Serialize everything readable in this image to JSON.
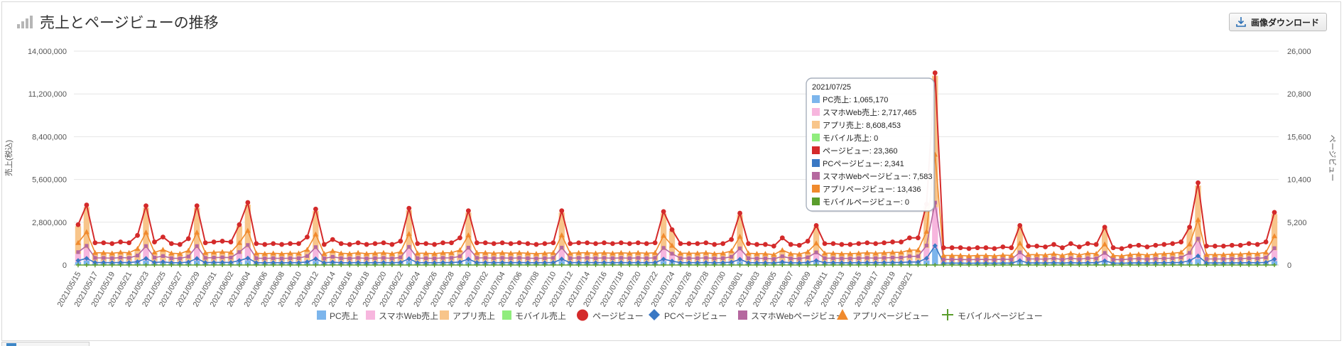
{
  "header": {
    "title": "売上とページビューの推移",
    "download_label": "画像ダウンロード"
  },
  "chart_data": {
    "type": "combo-bar-line",
    "title": "売上とページビューの推移",
    "y_left_label": "売上(税込)",
    "y_right_label": "ページビュー",
    "y_left_range": [
      0,
      14000000
    ],
    "y_right_range": [
      0,
      26000
    ],
    "y_left_ticks": [
      "0",
      "2,800,000",
      "5,600,000",
      "8,400,000",
      "11,200,000",
      "14,000,000"
    ],
    "y_right_ticks": [
      "0",
      "5,200",
      "10,400",
      "15,600",
      "20,800",
      "26,000"
    ],
    "x_tick_labels": [
      "2021/05/15",
      "2021/05/17",
      "2021/05/19",
      "2021/05/21",
      "2021/05/23",
      "2021/05/25",
      "2021/05/27",
      "2021/05/29",
      "2021/05/31",
      "2021/06/02",
      "2021/06/04",
      "2021/06/06",
      "2021/06/08",
      "2021/06/10",
      "2021/06/12",
      "2021/06/14",
      "2021/06/16",
      "2021/06/18",
      "2021/06/20",
      "2021/06/22",
      "2021/06/24",
      "2021/06/26",
      "2021/06/28",
      "2021/06/30",
      "2021/07/02",
      "2021/07/04",
      "2021/07/06",
      "2021/07/08",
      "2021/07/10",
      "2021/07/12",
      "2021/07/14",
      "2021/07/16",
      "2021/07/18",
      "2021/07/20",
      "2021/07/22",
      "2021/07/24",
      "2021/07/26",
      "2021/07/28",
      "2021/07/30",
      "2021/08/01",
      "2021/08/03",
      "2021/08/05",
      "2021/08/07",
      "2021/08/09",
      "2021/08/11",
      "2021/08/13",
      "2021/08/15",
      "2021/08/17",
      "2021/08/19",
      "2021/08/21"
    ],
    "series_colors": {
      "pc_sales": "#7cb5ec",
      "sp_web_sales": "#f7b6de",
      "app_sales": "#f8c58a",
      "mobile_sales": "#90ed7d",
      "page_views": "#d42a2a",
      "pc_pv": "#3a78c4",
      "sp_web_pv": "#b5689f",
      "app_pv": "#f08a2d",
      "mobile_pv": "#5a9d2c"
    },
    "legend": [
      {
        "label": "PC売上",
        "key": "pc_sales",
        "marker": "square"
      },
      {
        "label": "スマホWeb売上",
        "key": "sp_web_sales",
        "marker": "square"
      },
      {
        "label": "アプリ売上",
        "key": "app_sales",
        "marker": "square"
      },
      {
        "label": "モバイル売上",
        "key": "mobile_sales",
        "marker": "square"
      },
      {
        "label": "ページビュー",
        "key": "page_views",
        "marker": "circle"
      },
      {
        "label": "PCページビュー",
        "key": "pc_pv",
        "marker": "diamond"
      },
      {
        "label": "スマホWebページビュー",
        "key": "sp_web_pv",
        "marker": "square"
      },
      {
        "label": "アプリページビュー",
        "key": "app_pv",
        "marker": "triangle"
      },
      {
        "label": "モバイルページビュー",
        "key": "mobile_pv",
        "marker": "cross"
      }
    ],
    "tooltip": {
      "date": "2021/07/25",
      "rows": [
        {
          "key": "pc_sales",
          "text": "PC売上: 1,065,170"
        },
        {
          "key": "sp_web_sales",
          "text": "スマホWeb売上: 2,717,465"
        },
        {
          "key": "app_sales",
          "text": "アプリ売上: 8,608,453"
        },
        {
          "key": "mobile_sales",
          "text": "モバイル売上: 0"
        },
        {
          "key": "page_views",
          "text": "ページビュー: 23,360"
        },
        {
          "key": "pc_pv",
          "text": "PCページビュー: 2,341"
        },
        {
          "key": "sp_web_pv",
          "text": "スマホWebページビュー: 7,583"
        },
        {
          "key": "app_pv",
          "text": "アプリページビュー: 13,436"
        },
        {
          "key": "mobile_pv",
          "text": "モバイルページビュー: 0"
        }
      ]
    },
    "page_views": [
      4900,
      7300,
      2700,
      2700,
      2600,
      2800,
      2700,
      3600,
      7200,
      2800,
      3400,
      2600,
      2500,
      3200,
      7200,
      2700,
      2800,
      2900,
      2800,
      4900,
      7600,
      2600,
      2500,
      2600,
      2500,
      2600,
      2600,
      3400,
      6800,
      2500,
      3100,
      2600,
      2500,
      2700,
      2500,
      2600,
      2700,
      2500,
      2900,
      6900,
      2600,
      2600,
      2500,
      2700,
      2700,
      3300,
      6600,
      2700,
      2700,
      2600,
      2700,
      2600,
      2700,
      2600,
      2500,
      2600,
      2700,
      6600,
      2600,
      2700,
      2700,
      2600,
      2700,
      2600,
      2700,
      2600,
      2700,
      2600,
      2700,
      6500,
      4300,
      2600,
      2600,
      2600,
      2700,
      2500,
      2600,
      3100,
      6300,
      2600,
      2500,
      2500,
      2300,
      3300,
      2500,
      2400,
      2900,
      4800,
      2600,
      2600,
      2500,
      2500,
      2600,
      2700,
      2600,
      2700,
      2800,
      2800,
      3300,
      3300,
      7400,
      23360,
      2100,
      2100,
      2100,
      2000,
      2100,
      2100,
      2000,
      2200,
      2100,
      4800,
      2300,
      2300,
      2200,
      2500,
      2100,
      2600,
      2200,
      2600,
      2500,
      4600,
      2100,
      2000,
      2300,
      2400,
      2200,
      2400,
      2500,
      2600,
      2800,
      4600,
      10000,
      2300,
      2300,
      2300,
      2400,
      2400,
      2600,
      2500,
      2800,
      6400
    ]
  }
}
